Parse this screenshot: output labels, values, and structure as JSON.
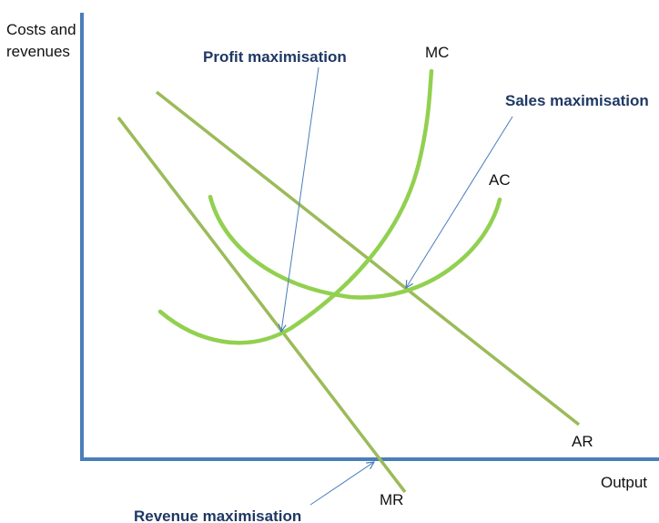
{
  "axes": {
    "y_label_line1": "Costs and",
    "y_label_line2": "revenues",
    "x_label": "Output"
  },
  "curves": {
    "mc": "MC",
    "ac": "AC",
    "ar": "AR",
    "mr": "MR"
  },
  "annotations": {
    "profit_max": "Profit maximisation",
    "sales_max": "Sales maximisation",
    "revenue_max": "Revenue maximisation"
  },
  "colors": {
    "axis": "#4a7ebb",
    "curve": "#92d050",
    "line": "#9bbb59",
    "annotation_text": "#1f3864",
    "pointer": "#4a7ebb"
  }
}
